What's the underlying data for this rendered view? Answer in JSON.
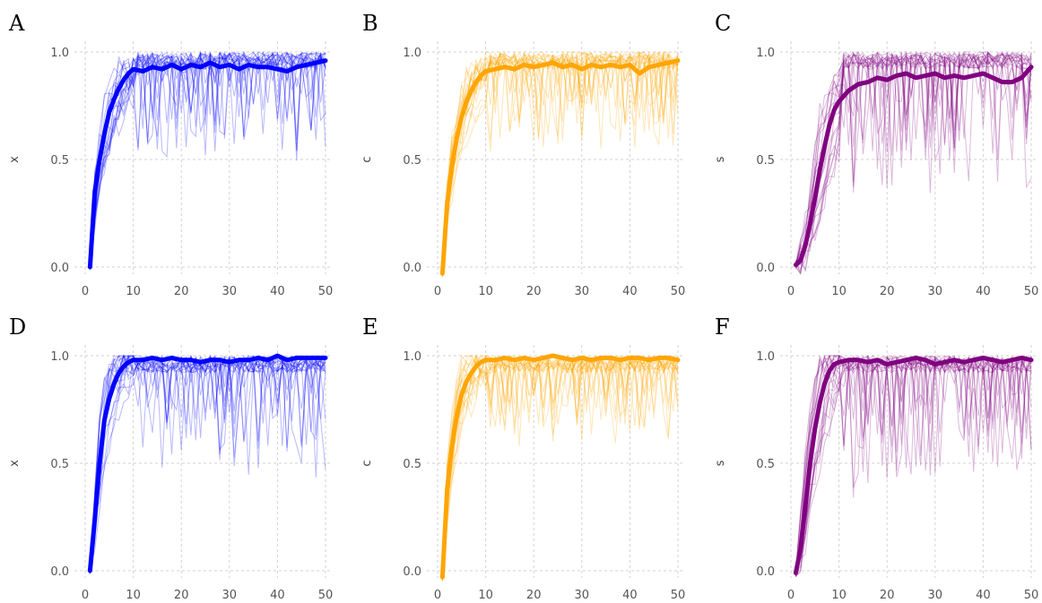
{
  "figure": {
    "panels": [
      {
        "letter": "A",
        "ylabel": "x",
        "color": "#0000ff"
      },
      {
        "letter": "B",
        "ylabel": "c",
        "color": "#ffa500"
      },
      {
        "letter": "C",
        "ylabel": "s",
        "color": "#800080"
      },
      {
        "letter": "D",
        "ylabel": "x",
        "color": "#0000ff"
      },
      {
        "letter": "E",
        "ylabel": "c",
        "color": "#ffa500"
      },
      {
        "letter": "F",
        "ylabel": "s",
        "color": "#800080"
      }
    ]
  },
  "chart_data": [
    {
      "type": "line",
      "panel": "A",
      "xlabel": "",
      "ylabel": "x",
      "xlim": [
        0,
        50
      ],
      "ylim": [
        0,
        1
      ],
      "xticks": [
        0,
        10,
        20,
        30,
        40,
        50
      ],
      "yticks": [
        0.0,
        0.5,
        1.0
      ],
      "yticklabels": [
        "0.0",
        "0.5",
        "1.0"
      ],
      "grid": true,
      "legend": "none",
      "replicate_count": 20,
      "replicate_floor_min": 0.45,
      "replicate_floor_max": 0.85,
      "mean": {
        "x": [
          1,
          2,
          3,
          4,
          5,
          6,
          7,
          8,
          9,
          10,
          12,
          14,
          16,
          18,
          20,
          22,
          24,
          26,
          28,
          30,
          32,
          34,
          36,
          38,
          40,
          42,
          44,
          46,
          48,
          50
        ],
        "y": [
          0.0,
          0.35,
          0.5,
          0.62,
          0.72,
          0.78,
          0.83,
          0.87,
          0.9,
          0.92,
          0.91,
          0.93,
          0.92,
          0.94,
          0.92,
          0.94,
          0.93,
          0.95,
          0.93,
          0.94,
          0.92,
          0.94,
          0.93,
          0.93,
          0.92,
          0.91,
          0.93,
          0.94,
          0.95,
          0.96
        ]
      }
    },
    {
      "type": "line",
      "panel": "B",
      "xlabel": "",
      "ylabel": "c",
      "xlim": [
        0,
        50
      ],
      "ylim": [
        0,
        1
      ],
      "xticks": [
        0,
        10,
        20,
        30,
        40,
        50
      ],
      "yticks": [
        0.0,
        0.5,
        1.0
      ],
      "yticklabels": [
        "0.0",
        "0.5",
        "1.0"
      ],
      "grid": true,
      "legend": "none",
      "replicate_count": 20,
      "replicate_floor_min": 0.5,
      "replicate_floor_max": 0.85,
      "mean": {
        "x": [
          1,
          2,
          3,
          4,
          5,
          6,
          7,
          8,
          9,
          10,
          12,
          14,
          16,
          18,
          20,
          22,
          24,
          26,
          28,
          30,
          32,
          34,
          36,
          38,
          40,
          42,
          44,
          46,
          48,
          50
        ],
        "y": [
          -0.03,
          0.3,
          0.47,
          0.6,
          0.7,
          0.77,
          0.82,
          0.86,
          0.89,
          0.91,
          0.92,
          0.93,
          0.92,
          0.94,
          0.93,
          0.94,
          0.95,
          0.93,
          0.94,
          0.92,
          0.94,
          0.93,
          0.94,
          0.93,
          0.94,
          0.9,
          0.93,
          0.94,
          0.95,
          0.96
        ]
      }
    },
    {
      "type": "line",
      "panel": "C",
      "xlabel": "",
      "ylabel": "s",
      "xlim": [
        0,
        50
      ],
      "ylim": [
        0,
        1
      ],
      "xticks": [
        0,
        10,
        20,
        30,
        40,
        50
      ],
      "yticks": [
        0.0,
        0.5,
        1.0
      ],
      "yticklabels": [
        "0.0",
        "0.5",
        "1.0"
      ],
      "grid": true,
      "legend": "none",
      "replicate_count": 20,
      "replicate_floor_min": 0.25,
      "replicate_floor_max": 0.75,
      "mean": {
        "x": [
          1,
          2,
          3,
          4,
          5,
          6,
          7,
          8,
          9,
          10,
          12,
          14,
          16,
          18,
          20,
          22,
          24,
          26,
          28,
          30,
          32,
          34,
          36,
          38,
          40,
          42,
          44,
          46,
          48,
          50
        ],
        "y": [
          0.01,
          0.03,
          0.1,
          0.2,
          0.32,
          0.45,
          0.56,
          0.66,
          0.73,
          0.77,
          0.82,
          0.85,
          0.86,
          0.88,
          0.87,
          0.89,
          0.9,
          0.88,
          0.89,
          0.9,
          0.88,
          0.89,
          0.88,
          0.89,
          0.9,
          0.88,
          0.86,
          0.86,
          0.88,
          0.93
        ]
      }
    },
    {
      "type": "line",
      "panel": "D",
      "xlabel": "",
      "ylabel": "x",
      "xlim": [
        0,
        50
      ],
      "ylim": [
        0,
        1
      ],
      "xticks": [
        0,
        10,
        20,
        30,
        40,
        50
      ],
      "yticks": [
        0.0,
        0.5,
        1.0
      ],
      "yticklabels": [
        "0.0",
        "0.5",
        "1.0"
      ],
      "grid": true,
      "legend": "none",
      "replicate_count": 20,
      "replicate_floor_min": 0.42,
      "replicate_floor_max": 0.85,
      "mean": {
        "x": [
          1,
          2,
          3,
          4,
          5,
          6,
          7,
          8,
          9,
          10,
          12,
          14,
          16,
          18,
          20,
          22,
          24,
          26,
          28,
          30,
          32,
          34,
          36,
          38,
          40,
          42,
          44,
          46,
          48,
          50
        ],
        "y": [
          0.0,
          0.24,
          0.5,
          0.7,
          0.8,
          0.87,
          0.92,
          0.95,
          0.97,
          0.98,
          0.98,
          0.99,
          0.98,
          0.99,
          0.98,
          0.98,
          0.97,
          0.98,
          0.98,
          0.97,
          0.98,
          0.98,
          0.99,
          0.98,
          1.0,
          0.98,
          0.99,
          0.99,
          0.99,
          0.99
        ]
      }
    },
    {
      "type": "line",
      "panel": "E",
      "xlabel": "",
      "ylabel": "c",
      "xlim": [
        0,
        50
      ],
      "ylim": [
        0,
        1
      ],
      "xticks": [
        0,
        10,
        20,
        30,
        40,
        50
      ],
      "yticks": [
        0.0,
        0.5,
        1.0
      ],
      "yticklabels": [
        "0.0",
        "0.5",
        "1.0"
      ],
      "grid": true,
      "legend": "none",
      "replicate_count": 20,
      "replicate_floor_min": 0.55,
      "replicate_floor_max": 0.85,
      "mean": {
        "x": [
          1,
          2,
          3,
          4,
          5,
          6,
          7,
          8,
          9,
          10,
          12,
          14,
          16,
          18,
          20,
          22,
          24,
          26,
          28,
          30,
          32,
          34,
          36,
          38,
          40,
          42,
          44,
          46,
          48,
          50
        ],
        "y": [
          -0.03,
          0.38,
          0.58,
          0.72,
          0.82,
          0.88,
          0.92,
          0.95,
          0.97,
          0.98,
          0.98,
          0.99,
          0.98,
          0.99,
          0.98,
          0.99,
          1.0,
          0.99,
          0.98,
          0.99,
          0.98,
          0.99,
          0.99,
          0.98,
          0.99,
          0.99,
          0.98,
          0.99,
          0.99,
          0.98
        ]
      }
    },
    {
      "type": "line",
      "panel": "F",
      "xlabel": "",
      "ylabel": "s",
      "xlim": [
        0,
        50
      ],
      "ylim": [
        0,
        1
      ],
      "xticks": [
        0,
        10,
        20,
        30,
        40,
        50
      ],
      "yticks": [
        0.0,
        0.5,
        1.0
      ],
      "yticklabels": [
        "0.0",
        "0.5",
        "1.0"
      ],
      "grid": true,
      "legend": "none",
      "replicate_count": 20,
      "replicate_floor_min": 0.3,
      "replicate_floor_max": 0.8,
      "mean": {
        "x": [
          1,
          2,
          3,
          4,
          5,
          6,
          7,
          8,
          9,
          10,
          12,
          14,
          16,
          18,
          20,
          22,
          24,
          26,
          28,
          30,
          32,
          34,
          36,
          38,
          40,
          42,
          44,
          46,
          48,
          50
        ],
        "y": [
          -0.01,
          0.1,
          0.3,
          0.5,
          0.66,
          0.78,
          0.87,
          0.93,
          0.96,
          0.97,
          0.98,
          0.98,
          0.97,
          0.98,
          0.96,
          0.97,
          0.98,
          0.99,
          0.98,
          0.96,
          0.97,
          0.98,
          0.97,
          0.98,
          0.99,
          0.98,
          0.97,
          0.98,
          0.99,
          0.98
        ]
      }
    }
  ]
}
